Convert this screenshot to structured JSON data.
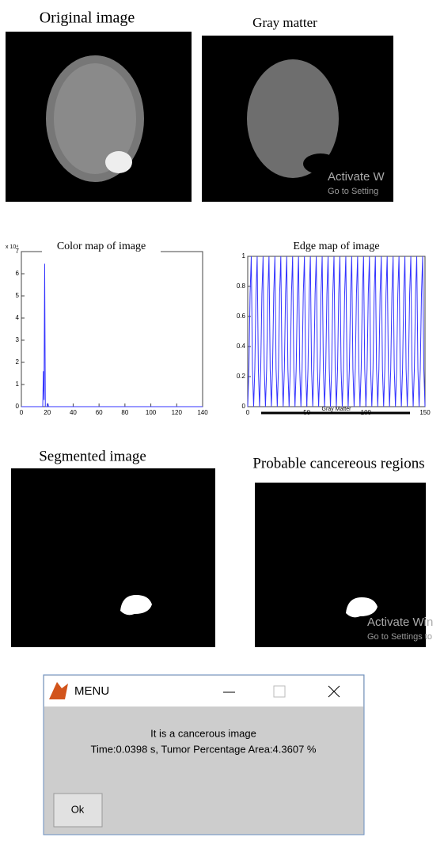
{
  "images": [
    {
      "title": "Original image"
    },
    {
      "title": "Gray matter",
      "watermark": [
        "Activate W",
        "Go to Setting"
      ]
    },
    {
      "title": "Segmented image"
    },
    {
      "title": "Probable cancereous regions",
      "watermark": [
        "Activate Win",
        "Go to Settings to"
      ]
    }
  ],
  "chart_data": [
    {
      "type": "line",
      "title": "Color map of image",
      "yscale_label": "x 10⁴",
      "color": "#3333ff",
      "x": [
        0,
        16.5,
        17,
        17.5,
        18,
        18.5,
        20,
        20.5,
        21,
        140
      ],
      "values": [
        0,
        0,
        1.6,
        0.3,
        6.45,
        0,
        0,
        0.15,
        0,
        0
      ],
      "xlim": [
        0,
        140
      ],
      "xticks": [
        0,
        20,
        40,
        60,
        80,
        100,
        120,
        140
      ],
      "ylim": [
        0,
        7
      ],
      "yticks": [
        0,
        1,
        2,
        3,
        4,
        5,
        6,
        7
      ]
    },
    {
      "type": "line",
      "title": "Edge map of image",
      "xlabel": "Gray Matter",
      "color": "#3333ff",
      "x": [
        0,
        1,
        2,
        3,
        4,
        5,
        6,
        7,
        8,
        9,
        10,
        11,
        12,
        13,
        14,
        15,
        16,
        17,
        18,
        19,
        20,
        21,
        22,
        23,
        24,
        25,
        26,
        27,
        28,
        29,
        30,
        31,
        32,
        33,
        34,
        35,
        36,
        37,
        38,
        39,
        40,
        41,
        42,
        43,
        44,
        45,
        46,
        47,
        48,
        49,
        50,
        51,
        52,
        53,
        54,
        55,
        56,
        57,
        58,
        59,
        60,
        61,
        62,
        63,
        64,
        65,
        66,
        67,
        68,
        69,
        70,
        71,
        72,
        73,
        74,
        75,
        76,
        77,
        78,
        79,
        80,
        81,
        82,
        83,
        84,
        85,
        86,
        87,
        88,
        89,
        90,
        91,
        92,
        93,
        94,
        95,
        96,
        97,
        98,
        99,
        100,
        101,
        102,
        103,
        104,
        105,
        106,
        107,
        108,
        109,
        110,
        111,
        112,
        113,
        114,
        115,
        116,
        117,
        118,
        119,
        120,
        121,
        122,
        123,
        124,
        125,
        126,
        127,
        128,
        129,
        130,
        131,
        132,
        133,
        134,
        135,
        136,
        137,
        138,
        139,
        140,
        141,
        142,
        143,
        144,
        145,
        146,
        147,
        148,
        149,
        150
      ],
      "values": [
        0,
        0.25,
        0.75,
        1,
        0.25,
        0,
        0.25,
        0.75,
        1,
        0.25,
        0,
        0.25,
        0.75,
        1,
        0.25,
        0,
        0.25,
        0.75,
        1,
        0.25,
        0,
        0.25,
        0.75,
        1,
        0.25,
        0,
        0.25,
        0.75,
        1,
        0.25,
        0,
        0.25,
        0.75,
        1,
        0.25,
        0,
        0.25,
        0.75,
        1,
        0.25,
        0,
        0.25,
        0.75,
        1,
        0.25,
        0,
        0.25,
        0.75,
        1,
        0.25,
        0,
        0.25,
        0.75,
        1,
        0.25,
        0,
        0.25,
        0.75,
        1,
        0.25,
        0,
        0.25,
        0.75,
        1,
        0.25,
        0,
        0.25,
        0.75,
        1,
        0.25,
        0,
        0.25,
        0.75,
        1,
        0.25,
        0,
        0.25,
        0.75,
        1,
        0.25,
        0,
        0.25,
        0.75,
        1,
        0.25,
        0,
        0.25,
        0.75,
        1,
        0.25,
        0,
        0.25,
        0.75,
        1,
        0.25,
        0,
        0.25,
        0.75,
        1,
        0.25,
        0,
        0.25,
        0.75,
        1,
        0.25,
        0,
        0.25,
        0.75,
        1,
        0.25,
        0,
        0.25,
        0.75,
        1,
        0.25,
        0,
        0.25,
        0.75,
        1,
        0.25,
        0,
        0.25,
        0.75,
        1,
        0.25,
        0,
        0.25,
        0.75,
        1,
        0.25,
        0,
        0.25,
        0.75,
        1,
        0.25,
        0,
        0.25,
        0.75,
        1,
        0.25,
        0,
        0.25,
        0.75,
        1,
        0.25,
        0,
        0.25,
        0.75,
        1,
        0.25,
        0
      ],
      "xlim": [
        0,
        150
      ],
      "xticks": [
        0,
        50,
        100,
        150
      ],
      "ylim": [
        0,
        1
      ],
      "yticks": [
        0,
        0.2,
        0.4,
        0.6,
        0.8,
        1
      ]
    }
  ],
  "dialog": {
    "title": "MENU",
    "message": [
      "It is a cancerous image",
      "Time:0.0398 s, Tumor Percentage Area:4.3607 %"
    ],
    "button": "Ok"
  }
}
